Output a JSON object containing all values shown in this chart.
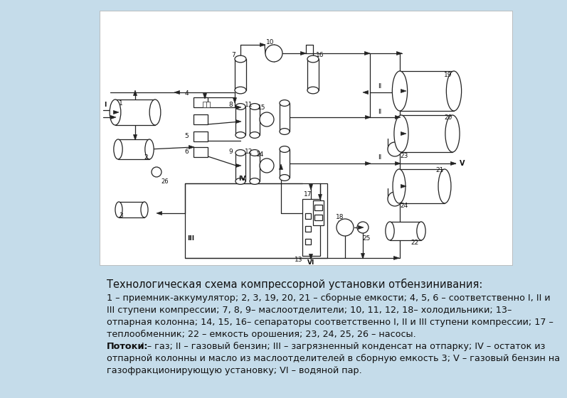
{
  "background_color": "#c5dcea",
  "diagram_bg": "#ffffff",
  "title": "Технологическая схема компрессорной установки отбензинивания:",
  "title_fontsize": 10.5,
  "description_lines": [
    "1 – приемник-аккумулятор; 2, 3, 19, 20, 21 – сборные емкости; 4, 5, 6 – соответственно I, II и",
    "III ступени компрессии; 7, 8, 9– маслоотделители; 10, 11, 12, 18– холодильники; 13–",
    "отпарная колонна; 14, 15, 16– сепараторы соответственно I, II и III ступени компрессии; 17 –",
    "теплообменник; 22 – емкость орошения; 23, 24, 25, 26 – насосы.",
    "Потоки: I – газ; II – газовый бензин; III – загрязненный конденсат на отпарку; IV – остаток из",
    "отпарной колонны и масло из маслоотделителей в сборную емкость 3; V – газовый бензин на",
    "газофракционирующую установку; VI – водяной пар."
  ],
  "desc_fontsize": 9.2,
  "text_color": "#111111"
}
